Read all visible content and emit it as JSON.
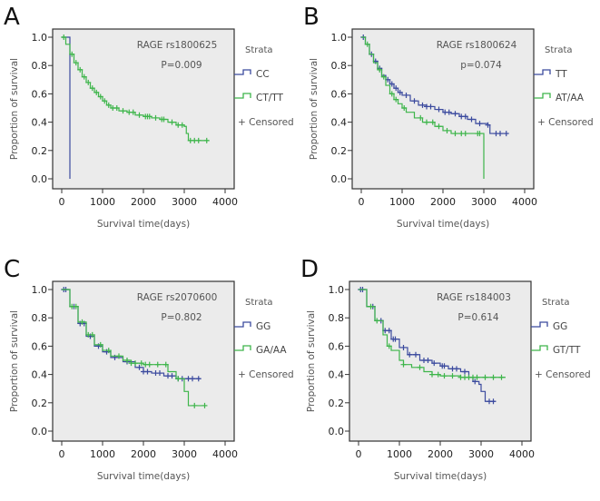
{
  "colors": {
    "blue": "#3b4a9e",
    "green": "#3db54a",
    "plot_bg": "#ebebeb"
  },
  "chart_data": [
    {
      "type": "line",
      "panel_label": "A",
      "title": "RAGE rs1800625",
      "pvalue": "P=0.009",
      "xlabel": "Survival time(days)",
      "ylabel": "Proportion of survival",
      "xlim": [
        0,
        4000
      ],
      "ylim": [
        0,
        1
      ],
      "xticks": [
        "0",
        "1000",
        "2000",
        "3000",
        "4000"
      ],
      "yticks": [
        "0.0",
        "0.2",
        "0.4",
        "0.6",
        "0.8",
        "1.0"
      ],
      "legend": {
        "title": "Strata",
        "censored": "+ Censored"
      },
      "series": [
        {
          "name": "CC",
          "color": "blue",
          "steps": [
            [
              0,
              1.0
            ],
            [
              200,
              0.0
            ]
          ],
          "censored": []
        },
        {
          "name": "CT/TT",
          "color": "green",
          "steps": [
            [
              0,
              1.0
            ],
            [
              100,
              0.95
            ],
            [
              200,
              0.88
            ],
            [
              300,
              0.82
            ],
            [
              400,
              0.77
            ],
            [
              500,
              0.72
            ],
            [
              600,
              0.68
            ],
            [
              700,
              0.64
            ],
            [
              800,
              0.61
            ],
            [
              900,
              0.58
            ],
            [
              1000,
              0.55
            ],
            [
              1100,
              0.52
            ],
            [
              1200,
              0.5
            ],
            [
              1400,
              0.48
            ],
            [
              1600,
              0.47
            ],
            [
              1800,
              0.45
            ],
            [
              2000,
              0.44
            ],
            [
              2200,
              0.43
            ],
            [
              2400,
              0.42
            ],
            [
              2600,
              0.4
            ],
            [
              2800,
              0.38
            ],
            [
              3000,
              0.37
            ],
            [
              3050,
              0.32
            ],
            [
              3100,
              0.27
            ],
            [
              3600,
              0.27
            ]
          ],
          "censored": [
            50,
            250,
            350,
            450,
            550,
            650,
            750,
            850,
            950,
            1050,
            1150,
            1250,
            1350,
            1500,
            1650,
            1750,
            1900,
            2050,
            2100,
            2150,
            2300,
            2450,
            2500,
            2700,
            2850,
            2950,
            3150,
            3250,
            3350,
            3550
          ]
        }
      ]
    },
    {
      "type": "line",
      "panel_label": "B",
      "title": "RAGE rs1800624",
      "pvalue": "p=0.074",
      "xlabel": "Survival time(days)",
      "ylabel": "Proportion of survival",
      "xlim": [
        0,
        4000
      ],
      "ylim": [
        0,
        1
      ],
      "xticks": [
        "0",
        "1000",
        "2000",
        "3000",
        "4000"
      ],
      "yticks": [
        "0.0",
        "0.2",
        "0.4",
        "0.6",
        "0.8",
        "1.0"
      ],
      "legend": {
        "title": "Strata",
        "censored": "+ Censored"
      },
      "series": [
        {
          "name": "TT",
          "color": "blue",
          "steps": [
            [
              0,
              1.0
            ],
            [
              100,
              0.95
            ],
            [
              200,
              0.88
            ],
            [
              300,
              0.83
            ],
            [
              400,
              0.78
            ],
            [
              500,
              0.73
            ],
            [
              600,
              0.7
            ],
            [
              700,
              0.67
            ],
            [
              800,
              0.64
            ],
            [
              900,
              0.61
            ],
            [
              1000,
              0.59
            ],
            [
              1200,
              0.55
            ],
            [
              1400,
              0.52
            ],
            [
              1600,
              0.51
            ],
            [
              1800,
              0.49
            ],
            [
              2000,
              0.47
            ],
            [
              2200,
              0.46
            ],
            [
              2400,
              0.44
            ],
            [
              2600,
              0.42
            ],
            [
              2800,
              0.39
            ],
            [
              3100,
              0.38
            ],
            [
              3150,
              0.32
            ],
            [
              3600,
              0.32
            ]
          ],
          "censored": [
            50,
            250,
            350,
            450,
            650,
            750,
            850,
            950,
            1100,
            1300,
            1500,
            1600,
            1700,
            1900,
            2050,
            2150,
            2300,
            2450,
            2550,
            2700,
            2900,
            3100,
            3300,
            3400,
            3550
          ]
        },
        {
          "name": "AT/AA",
          "color": "green",
          "steps": [
            [
              0,
              1.0
            ],
            [
              100,
              0.95
            ],
            [
              200,
              0.88
            ],
            [
              300,
              0.82
            ],
            [
              400,
              0.77
            ],
            [
              500,
              0.72
            ],
            [
              600,
              0.66
            ],
            [
              700,
              0.6
            ],
            [
              800,
              0.56
            ],
            [
              900,
              0.53
            ],
            [
              1000,
              0.5
            ],
            [
              1100,
              0.47
            ],
            [
              1300,
              0.43
            ],
            [
              1500,
              0.4
            ],
            [
              1800,
              0.37
            ],
            [
              2000,
              0.34
            ],
            [
              2200,
              0.32
            ],
            [
              3000,
              0.32
            ],
            [
              3000,
              0.0
            ]
          ],
          "censored": [
            150,
            450,
            550,
            750,
            850,
            1050,
            1450,
            1600,
            1750,
            1900,
            2100,
            2300,
            2450,
            2550,
            2850,
            2900
          ]
        }
      ]
    },
    {
      "type": "line",
      "panel_label": "C",
      "title": "RAGE rs2070600",
      "pvalue": "P=0.802",
      "xlabel": "Survival time(days)",
      "ylabel": "Proportion of survival",
      "xlim": [
        0,
        4000
      ],
      "ylim": [
        0,
        1
      ],
      "xticks": [
        "0",
        "1000",
        "2000",
        "3000",
        "4000"
      ],
      "yticks": [
        "0.0",
        "0.2",
        "0.4",
        "0.6",
        "0.8",
        "1.0"
      ],
      "legend": {
        "title": "Strata",
        "censored": "+ Censored"
      },
      "series": [
        {
          "name": "GG",
          "color": "blue",
          "steps": [
            [
              0,
              1.0
            ],
            [
              200,
              0.88
            ],
            [
              400,
              0.76
            ],
            [
              600,
              0.67
            ],
            [
              800,
              0.6
            ],
            [
              1000,
              0.56
            ],
            [
              1200,
              0.52
            ],
            [
              1500,
              0.49
            ],
            [
              1800,
              0.45
            ],
            [
              2000,
              0.42
            ],
            [
              2200,
              0.41
            ],
            [
              2500,
              0.39
            ],
            [
              2800,
              0.37
            ],
            [
              3400,
              0.37
            ]
          ],
          "censored": [
            50,
            100,
            300,
            450,
            550,
            700,
            900,
            1100,
            1300,
            1600,
            1900,
            2000,
            2100,
            2300,
            2400,
            2600,
            2700,
            2850,
            2950,
            3100,
            3200,
            3350
          ]
        },
        {
          "name": "GA/AA",
          "color": "green",
          "steps": [
            [
              0,
              1.0
            ],
            [
              200,
              0.88
            ],
            [
              400,
              0.77
            ],
            [
              600,
              0.68
            ],
            [
              800,
              0.61
            ],
            [
              1000,
              0.57
            ],
            [
              1200,
              0.53
            ],
            [
              1500,
              0.5
            ],
            [
              1700,
              0.48
            ],
            [
              2000,
              0.47
            ],
            [
              2600,
              0.42
            ],
            [
              2800,
              0.37
            ],
            [
              3000,
              0.28
            ],
            [
              3100,
              0.18
            ],
            [
              3550,
              0.18
            ]
          ],
          "censored": [
            250,
            350,
            500,
            650,
            750,
            950,
            1150,
            1400,
            1600,
            1700,
            1800,
            1950,
            2050,
            2150,
            2350,
            2550,
            2850,
            3250,
            3500
          ]
        }
      ]
    },
    {
      "type": "line",
      "panel_label": "D",
      "title": "RAGE rs184003",
      "pvalue": "P=0.614",
      "xlabel": "Survival time(days)",
      "ylabel": "Proportion of survival",
      "xlim": [
        0,
        4000
      ],
      "ylim": [
        0,
        1
      ],
      "xticks": [
        "0",
        "1000",
        "2000",
        "3000",
        "4000"
      ],
      "yticks": [
        "0.0",
        "0.2",
        "0.4",
        "0.6",
        "0.8",
        "1.0"
      ],
      "legend": {
        "title": "Strata",
        "censored": "+ Censored"
      },
      "series": [
        {
          "name": "GG",
          "color": "blue",
          "steps": [
            [
              0,
              1.0
            ],
            [
              200,
              0.88
            ],
            [
              400,
              0.78
            ],
            [
              600,
              0.71
            ],
            [
              800,
              0.65
            ],
            [
              1000,
              0.59
            ],
            [
              1200,
              0.54
            ],
            [
              1500,
              0.5
            ],
            [
              1800,
              0.48
            ],
            [
              2000,
              0.46
            ],
            [
              2200,
              0.44
            ],
            [
              2500,
              0.42
            ],
            [
              2700,
              0.38
            ],
            [
              2800,
              0.35
            ],
            [
              2950,
              0.33
            ],
            [
              3000,
              0.28
            ],
            [
              3100,
              0.21
            ],
            [
              3350,
              0.21
            ]
          ],
          "censored": [
            50,
            100,
            350,
            550,
            650,
            750,
            850,
            900,
            1100,
            1250,
            1400,
            1600,
            1700,
            1850,
            2050,
            2100,
            2300,
            2400,
            2600,
            2850,
            3200,
            3300
          ]
        },
        {
          "name": "GT/TT",
          "color": "green",
          "steps": [
            [
              0,
              1.0
            ],
            [
              200,
              0.88
            ],
            [
              400,
              0.78
            ],
            [
              600,
              0.68
            ],
            [
              700,
              0.6
            ],
            [
              800,
              0.57
            ],
            [
              1000,
              0.5
            ],
            [
              1100,
              0.47
            ],
            [
              1300,
              0.45
            ],
            [
              1600,
              0.42
            ],
            [
              1800,
              0.4
            ],
            [
              2000,
              0.39
            ],
            [
              2500,
              0.38
            ],
            [
              3600,
              0.38
            ]
          ],
          "censored": [
            300,
            450,
            750,
            1100,
            1500,
            1800,
            1950,
            2100,
            2300,
            2500,
            2600,
            2700,
            2800,
            2900,
            3100,
            3300,
            3500
          ]
        }
      ]
    }
  ]
}
